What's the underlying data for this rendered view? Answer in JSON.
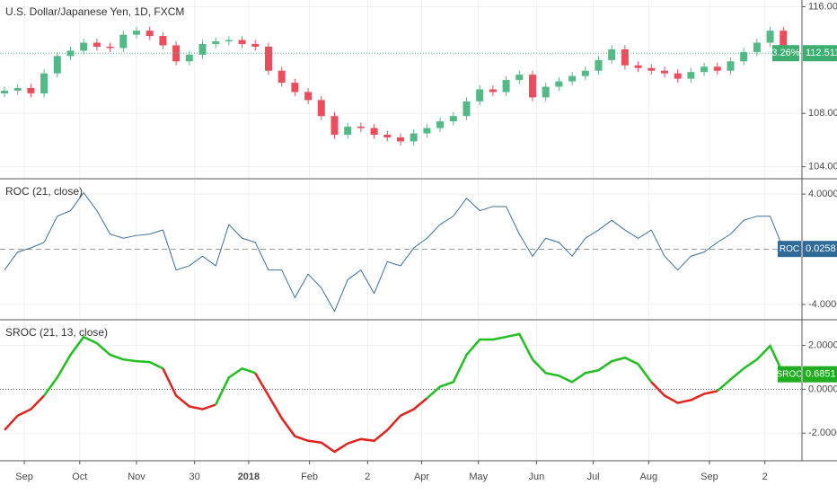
{
  "chart_data": [
    {
      "type": "candlestick",
      "title": "U.S. Dollar/Japanese Yen, 1D, FXCM",
      "up_color": "#53b987",
      "down_color": "#eb4d5c",
      "grid": true,
      "xlim": [
        -0.34,
        60.41
      ],
      "ylim": [
        103.1,
        116.5
      ],
      "yticks": [
        {
          "value": 104,
          "label": "104.000"
        },
        {
          "value": 108,
          "label": "108.000"
        },
        {
          "value": 116,
          "label": "116.000"
        }
      ],
      "open": [
        109.5,
        109.7,
        109.9,
        109.5,
        111.0,
        112.3,
        112.7,
        113.3,
        113.0,
        112.9,
        113.9,
        114.2,
        113.8,
        113.1,
        111.9,
        112.4,
        113.2,
        113.4,
        113.5,
        113.2,
        113.0,
        111.2,
        110.3,
        109.6,
        109.0,
        107.8,
        106.4,
        107.0,
        106.9,
        106.4,
        106.2,
        105.9,
        106.5,
        106.9,
        107.4,
        107.8,
        108.9,
        109.8,
        109.6,
        110.5,
        110.9,
        109.2,
        110.0,
        110.4,
        110.8,
        111.2,
        112.0,
        112.8,
        111.6,
        111.4,
        111.2,
        111.0,
        110.6,
        111.1,
        111.5,
        111.2,
        111.9,
        112.6,
        113.3,
        114.2
      ],
      "high": [
        110.0,
        110.2,
        110.2,
        111.3,
        112.6,
        113.0,
        113.6,
        113.6,
        113.3,
        114.2,
        114.5,
        114.5,
        114.1,
        113.4,
        112.7,
        113.5,
        113.7,
        113.8,
        113.8,
        113.5,
        113.3,
        111.5,
        110.6,
        109.9,
        109.3,
        108.1,
        107.3,
        107.3,
        107.2,
        106.7,
        106.5,
        106.8,
        107.2,
        107.7,
        108.1,
        109.2,
        110.1,
        110.1,
        110.8,
        111.2,
        111.2,
        110.3,
        110.7,
        111.1,
        111.5,
        112.3,
        113.1,
        113.1,
        111.9,
        111.7,
        111.5,
        111.3,
        111.4,
        111.8,
        111.8,
        112.2,
        112.9,
        113.6,
        114.5,
        114.5
      ],
      "low": [
        109.2,
        109.4,
        109.2,
        109.2,
        110.7,
        112.0,
        112.4,
        112.7,
        112.6,
        112.6,
        113.6,
        113.5,
        112.8,
        111.6,
        111.6,
        112.1,
        112.9,
        113.1,
        112.9,
        112.7,
        110.9,
        110.0,
        109.3,
        108.7,
        107.5,
        106.1,
        106.1,
        106.6,
        106.1,
        105.9,
        105.6,
        105.6,
        106.2,
        106.6,
        107.1,
        107.5,
        108.6,
        109.3,
        109.3,
        110.2,
        108.9,
        108.9,
        109.7,
        110.1,
        110.5,
        110.9,
        111.7,
        111.3,
        111.1,
        110.9,
        110.7,
        110.3,
        110.3,
        110.8,
        110.9,
        110.9,
        111.6,
        112.3,
        113.0,
        112.2
      ],
      "close": [
        109.7,
        109.9,
        109.5,
        111.0,
        112.3,
        112.7,
        113.3,
        113.0,
        112.9,
        113.9,
        114.2,
        113.8,
        113.1,
        111.9,
        112.4,
        113.2,
        113.4,
        113.5,
        113.2,
        113.0,
        111.2,
        110.3,
        109.6,
        109.0,
        107.8,
        106.4,
        107.0,
        106.9,
        106.4,
        106.2,
        105.9,
        106.5,
        106.9,
        107.4,
        107.8,
        108.9,
        109.8,
        109.6,
        110.5,
        110.9,
        109.2,
        110.0,
        110.4,
        110.8,
        111.2,
        112.0,
        112.8,
        111.6,
        111.4,
        111.2,
        111.0,
        110.6,
        111.1,
        111.5,
        111.2,
        111.9,
        112.6,
        113.3,
        114.2,
        112.511
      ],
      "change_label": "3.26%",
      "badge_color": "#3cae70"
    },
    {
      "type": "line",
      "title": "ROC (21, close)",
      "color": "#3a6f9a",
      "grid": true,
      "badge_label": "ROC",
      "badge_color": "#2f6a98",
      "baseline": 0,
      "xlim": [
        -0.34,
        60.41
      ],
      "ylim": [
        -5.11,
        5.05
      ],
      "yticks": [
        {
          "value": 4,
          "label": "4.0000"
        },
        {
          "value": -4,
          "label": "-4.0000"
        }
      ],
      "values": [
        -1.5,
        -0.2,
        0.1,
        0.5,
        2.4,
        2.8,
        4.1,
        2.8,
        1.1,
        0.8,
        1.0,
        1.1,
        1.4,
        -1.5,
        -1.2,
        -0.5,
        -1.2,
        1.8,
        0.8,
        0.5,
        -1.5,
        -1.5,
        -3.5,
        -1.8,
        -2.8,
        -4.5,
        -2.2,
        -1.5,
        -3.2,
        -0.9,
        -1.2,
        0.1,
        0.8,
        1.8,
        2.4,
        3.7,
        2.8,
        3.1,
        3.1,
        1.1,
        -0.5,
        0.8,
        0.5,
        -0.5,
        0.8,
        1.4,
        2.1,
        1.4,
        0.8,
        1.4,
        -0.5,
        -1.5,
        -0.5,
        -0.2,
        0.5,
        1.1,
        2.1,
        2.4,
        2.4,
        0.0258
      ]
    },
    {
      "type": "colored_line",
      "title": "SROC (21, 13, close)",
      "positive_color": "#1fbf1f",
      "negative_color": "#e0231e",
      "grid": true,
      "badge_label": "SROC",
      "badge_color": "#1fae1f",
      "baseline": 0,
      "xlim": [
        -0.34,
        60.41
      ],
      "ylim": [
        -3.26,
        3.13
      ],
      "yticks": [
        {
          "value": 2,
          "label": "2.0000"
        },
        {
          "value": 0,
          "label": "0.0000"
        },
        {
          "value": -2,
          "label": "-2.0000"
        }
      ],
      "xticks": [
        {
          "value": 1.5,
          "label": "Sep"
        },
        {
          "value": 5.7,
          "label": "Oct"
        },
        {
          "value": 10,
          "label": "Nov"
        },
        {
          "value": 14.4,
          "label": "30"
        },
        {
          "value": 18.5,
          "label": "2018"
        },
        {
          "value": 23.1,
          "label": "Feb"
        },
        {
          "value": 27.5,
          "label": "2"
        },
        {
          "value": 31.6,
          "label": "Apr"
        },
        {
          "value": 35.9,
          "label": "May"
        },
        {
          "value": 40.3,
          "label": "Jun"
        },
        {
          "value": 44.6,
          "label": "Jul"
        },
        {
          "value": 48.8,
          "label": "Aug"
        },
        {
          "value": 53.4,
          "label": "Sep"
        },
        {
          "value": 57.6,
          "label": "2"
        }
      ],
      "values": [
        -1.86,
        -1.2,
        -0.91,
        -0.29,
        0.54,
        1.57,
        2.39,
        2.1,
        1.57,
        1.36,
        1.28,
        1.24,
        0.95,
        -0.29,
        -0.78,
        -0.91,
        -0.7,
        0.54,
        0.95,
        0.74,
        -0.29,
        -1.32,
        -2.14,
        -2.35,
        -2.43,
        -2.85,
        -2.47,
        -2.27,
        -2.35,
        -1.86,
        -1.2,
        -0.91,
        -0.41,
        0.12,
        0.33,
        1.57,
        2.27,
        2.27,
        2.39,
        2.52,
        1.36,
        0.74,
        0.62,
        0.33,
        0.74,
        0.87,
        1.28,
        1.44,
        1.15,
        0.33,
        -0.29,
        -0.62,
        -0.49,
        -0.21,
        -0.08,
        0.45,
        0.95,
        1.36,
        1.98,
        0.6851
      ]
    }
  ]
}
